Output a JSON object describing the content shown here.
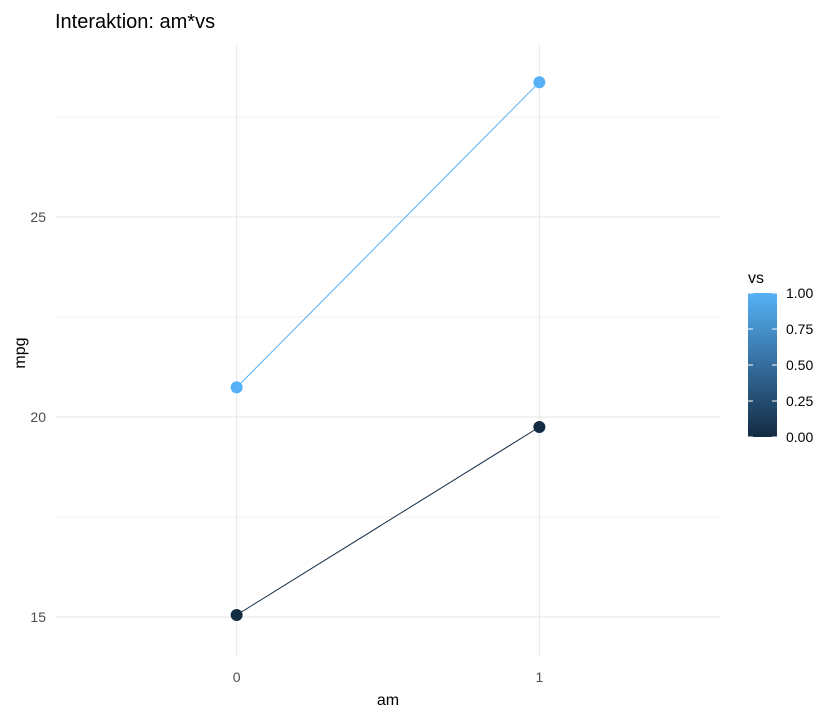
{
  "chart_data": {
    "type": "line",
    "title": "Interaktion: am*vs",
    "xlabel": "am",
    "ylabel": "mpg",
    "x": [
      0,
      1
    ],
    "x_tick_labels": [
      "0",
      "1"
    ],
    "xlim": [
      -0.6,
      1.6
    ],
    "ylim": [
      14.0,
      29.3
    ],
    "y_ticks": [
      15,
      20,
      25
    ],
    "y_tick_labels": [
      "15",
      "20",
      "25"
    ],
    "grid": true,
    "legend": {
      "title": "vs",
      "placement": "right",
      "type": "colorbar",
      "range": [
        0.0,
        1.0
      ],
      "tick_labels": [
        "0.00",
        "0.25",
        "0.50",
        "0.75",
        "1.00"
      ],
      "tick_values": [
        0.0,
        0.25,
        0.5,
        0.75,
        1.0
      ],
      "color_low": "#132B43",
      "color_high": "#56B1F7"
    },
    "series": [
      {
        "vs": 0,
        "x": [
          0,
          1
        ],
        "values": [
          15.05,
          19.75
        ],
        "color": "#132B43"
      },
      {
        "vs": 1,
        "x": [
          0,
          1
        ],
        "values": [
          20.74,
          28.37
        ],
        "color": "#56B1F7"
      }
    ]
  }
}
